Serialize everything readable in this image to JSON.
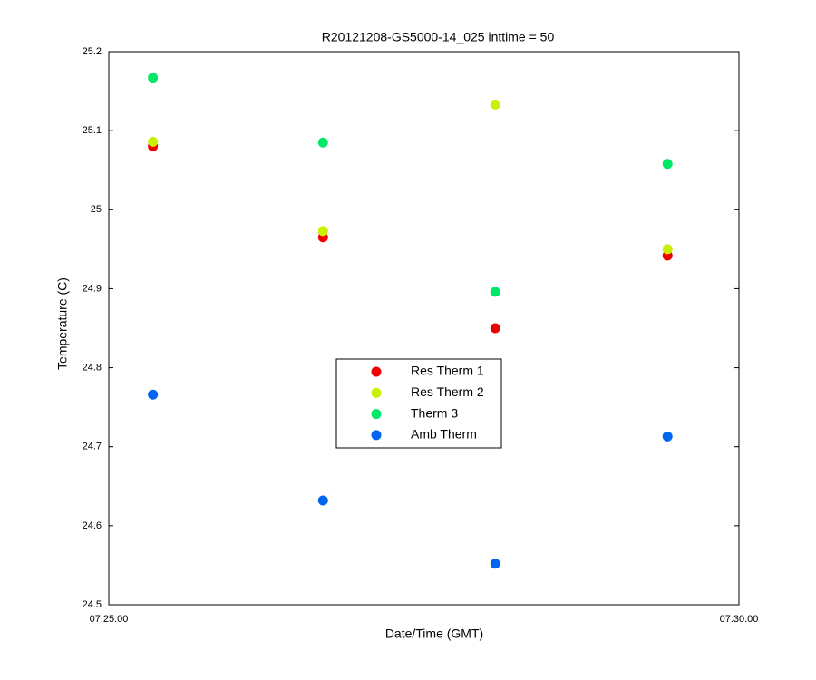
{
  "chart_data": {
    "type": "scatter",
    "title": "R20121208-GS5000-14_025 inttime = 50",
    "x_label": "Date/Time (GMT)",
    "y_label": "Temperature (C)",
    "x": [
      "07:25:21",
      "07:26:42",
      "07:28:04",
      "07:29:26"
    ],
    "series": [
      {
        "name": "Res Therm 1",
        "color": "#ee0000",
        "values": [
          25.08,
          24.965,
          24.85,
          24.942
        ]
      },
      {
        "name": "Res Therm 2",
        "color": "#ccee00",
        "values": [
          25.086,
          24.973,
          25.133,
          24.95
        ]
      },
      {
        "name": "Therm 3",
        "color": "#00e866",
        "values": [
          25.167,
          25.085,
          24.896,
          25.058
        ]
      },
      {
        "name": "Amb Therm",
        "color": "#0066ee",
        "values": [
          24.766,
          24.632,
          24.552,
          24.713
        ]
      }
    ],
    "xlim": [
      "07:25:00",
      "07:30:00"
    ],
    "xticks": [
      "07:25:00",
      "07:30:00"
    ],
    "ylim": [
      24.5,
      25.2
    ],
    "yticks": [
      24.5,
      24.6,
      24.7,
      24.8,
      24.9,
      25,
      25.1,
      25.2
    ]
  }
}
